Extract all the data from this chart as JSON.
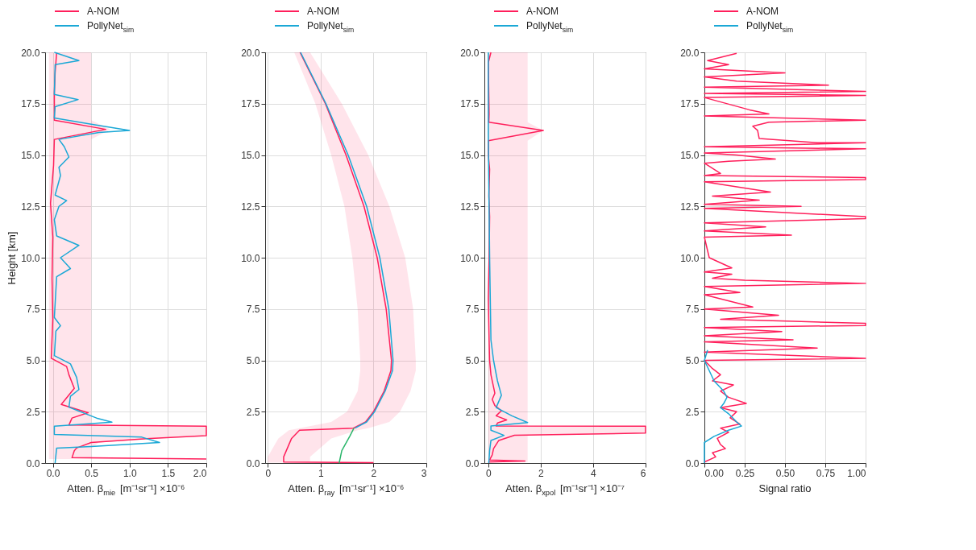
{
  "chart_data": [
    {
      "type": "line",
      "orientation": "horizontal",
      "xlabel": "Atten. β$_{mie}$ [m⁻¹sr⁻¹] ×10⁻⁶",
      "ylabel": "Height [km]",
      "xlim": [
        -0.1,
        2.0
      ],
      "xticks": [
        {
          "value": 0,
          "label": "0.0"
        },
        0.5,
        {
          "value": 1,
          "label": "1.0"
        },
        1.5,
        {
          "value": 2,
          "label": "2.0"
        }
      ],
      "ylim": [
        0,
        20
      ],
      "yticks": [
        {
          "value": 0,
          "label": "0.0"
        },
        2.5,
        {
          "value": 5,
          "label": "5.0"
        },
        7.5,
        {
          "value": 10,
          "label": "10.0"
        },
        12.5,
        {
          "value": 15,
          "label": "15.0"
        },
        17.5,
        {
          "value": 20,
          "label": "20.0"
        }
      ],
      "grid": true,
      "legend": "top left",
      "series": [
        {
          "name": "A-NOM",
          "color": "#ff1f5b",
          "values": [
            0.05,
            0.03,
            0.02,
            0.02,
            0.69,
            0.02,
            0.01,
            -0.03,
            0.0,
            -0.01,
            0.0,
            -0.02,
            0.18,
            0.21,
            0.28,
            0.11,
            0.46,
            0.25,
            0.21,
            2.0,
            2.0,
            1.22,
            0.5,
            0.31,
            0.28,
            0.25,
            2.0
          ],
          "x": [
            20,
            19.0,
            18.0,
            16.7,
            16.25,
            15.76,
            14.5,
            12.65,
            11,
            9,
            7,
            5.1,
            4.7,
            4.3,
            3.64,
            2.85,
            2.45,
            2.19,
            1.85,
            1.79,
            1.33,
            1.19,
            1.0,
            0.73,
            0.6,
            0.26,
            0.2
          ],
          "lower": [
            -0.05,
            -0.05,
            -0.05,
            -0.05,
            -0.05,
            -0.05,
            -0.05,
            -0.05,
            -0.05,
            -0.05,
            -0.05,
            -0.05,
            -0.05,
            -0.05,
            -0.05,
            -0.05,
            -0.05,
            -0.05,
            -0.05,
            -0.05,
            -0.05,
            -0.05,
            -0.05,
            -0.05,
            -0.05,
            -0.05,
            -0.05
          ],
          "upper": [
            0.5,
            0.5,
            0.5,
            0.5,
            0.75,
            0.5,
            0.5,
            0.5,
            0.5,
            0.5,
            0.5,
            0.5,
            0.5,
            0.5,
            0.5,
            0.5,
            0.5,
            0.5,
            0.5,
            2.0,
            2.0,
            1.3,
            0.6,
            0.5,
            0.5,
            0.5,
            2.0
          ]
        },
        {
          "name": "PollyNet$_{sim}$",
          "color": "#1ba8d6",
          "values": [
            0.02,
            0.34,
            0.03,
            0.02,
            0.33,
            0.03,
            0.02,
            0.5,
            1.0,
            0.6,
            0.08,
            0.15,
            0.21,
            0.08,
            0.1,
            0.03,
            0.18,
            0.08,
            0.02,
            0.05,
            0.34,
            0.1,
            0.23,
            0.05,
            0.02,
            0.1,
            0.04,
            0.02,
            0.23,
            0.31,
            0.34,
            0.23,
            0.21,
            0.57,
            0.77,
            0.02,
            0.02,
            1.16,
            1.39,
            0.5,
            0.05,
            0.03
          ],
          "x": [
            20,
            19.6,
            19.4,
            17.95,
            17.7,
            17.35,
            16.8,
            16.5,
            16.2,
            16.1,
            15.76,
            15.4,
            14.9,
            14.4,
            14.0,
            13.05,
            12.78,
            12.5,
            11.85,
            11.06,
            10.6,
            10.0,
            9.47,
            9.07,
            7.09,
            6.69,
            6.42,
            5.23,
            4.83,
            4.17,
            3.58,
            3.25,
            2.72,
            2.19,
            1.99,
            1.79,
            1.39,
            1.26,
            1.0,
            0.8,
            0.73,
            0
          ]
        }
      ]
    },
    {
      "type": "line",
      "orientation": "horizontal",
      "xlabel": "Atten. β$_{ray}$ [m⁻¹sr⁻¹] ×10⁻⁶",
      "xlim": [
        -0.05,
        3
      ],
      "xticks": [
        0,
        1,
        2,
        3
      ],
      "ylim": [
        0,
        20
      ],
      "yticks": [
        {
          "value": 0,
          "label": "0.0"
        },
        2.5,
        {
          "value": 5,
          "label": "5.0"
        },
        7.5,
        {
          "value": 10,
          "label": "10.0"
        },
        12.5,
        {
          "value": 15,
          "label": "15.0"
        },
        17.5,
        {
          "value": 20,
          "label": "20.0"
        }
      ],
      "grid": true,
      "legend": "top left",
      "series": [
        {
          "name": "A-NOM",
          "color": "#ff1f5b",
          "values": [
            0.61,
            1.09,
            1.48,
            1.82,
            2.07,
            2.24,
            2.34,
            2.33,
            2.2,
            2.0,
            1.85,
            1.62,
            0.6,
            0.45,
            0.3,
            0.3,
            2.0
          ],
          "x": [
            20,
            17.5,
            15,
            12.5,
            10,
            7.5,
            5,
            4.5,
            3.5,
            2.5,
            2.0,
            1.7,
            1.6,
            1.2,
            0.3,
            0.05,
            0.02
          ],
          "lower": [
            0.5,
            0.9,
            1.2,
            1.45,
            1.6,
            1.7,
            1.75,
            1.75,
            1.7,
            1.5,
            1.2,
            0.6,
            0.4,
            0.2,
            0.0,
            0.0,
            0.0
          ],
          "upper": [
            0.8,
            1.4,
            1.9,
            2.3,
            2.6,
            2.75,
            2.8,
            2.8,
            2.7,
            2.5,
            2.3,
            1.9,
            1.7,
            1.2,
            0.8,
            0.8,
            2.0
          ]
        },
        {
          "name": "PollyNet$_{sim}$",
          "color": "#1ba8d6",
          "values": [
            0.62,
            1.1,
            1.52,
            1.87,
            2.12,
            2.29,
            2.37,
            2.36,
            2.22,
            2.02,
            1.87,
            1.65
          ],
          "x": [
            20,
            17.5,
            15,
            12.5,
            10,
            7.5,
            5,
            4.5,
            3.5,
            2.5,
            2.0,
            1.7
          ]
        },
        {
          "color": "#2ab56a",
          "values": [
            1.63,
            1.55,
            1.4,
            1.35
          ],
          "x": [
            1.7,
            1.3,
            0.6,
            0
          ]
        }
      ]
    },
    {
      "type": "line",
      "orientation": "horizontal",
      "xlabel": "Atten. β$_{xpol}$ [m⁻¹sr⁻¹] ×10⁻⁷",
      "xlim": [
        -0.15,
        6
      ],
      "xticks": [
        0,
        2,
        4,
        6
      ],
      "ylim": [
        0,
        20
      ],
      "yticks": [
        {
          "value": 0,
          "label": "0.0"
        },
        2.5,
        {
          "value": 5,
          "label": "5.0"
        },
        7.5,
        {
          "value": 10,
          "label": "10.0"
        },
        12.5,
        {
          "value": 15,
          "label": "15.0"
        },
        17.5,
        {
          "value": 20,
          "label": "20.0"
        }
      ],
      "grid": true,
      "legend": "top left",
      "series": [
        {
          "name": "A-NOM",
          "color": "#ff1f5b",
          "values": [
            0.1,
            0.0,
            0.03,
            0.02,
            2.1,
            0.0,
            0.0,
            0.05,
            0.02,
            0.05,
            0.03,
            0.0,
            0.03,
            0.05,
            0.1,
            0.2,
            0.25,
            0.15,
            0.25,
            0.5,
            0.3,
            0.7,
            0.35,
            0.3,
            6.0,
            6.0,
            1.0,
            0.4,
            0.2,
            0.15,
            0.05,
            1.4,
            0.0
          ],
          "x": [
            20,
            19.5,
            17.0,
            16.6,
            16.2,
            15.7,
            15.0,
            14.3,
            13.0,
            12.0,
            10,
            8,
            6,
            5,
            4.3,
            3.7,
            3.4,
            3.1,
            2.8,
            2.55,
            2.3,
            2.1,
            1.95,
            1.8,
            1.79,
            1.46,
            1.35,
            1.1,
            0.7,
            0.4,
            0.15,
            0.1,
            0.05
          ],
          "lower": [
            0,
            0,
            0,
            0,
            0,
            0,
            0,
            0,
            0,
            0,
            0,
            0,
            0,
            0,
            0,
            0,
            0,
            0,
            0,
            0,
            0,
            0,
            0,
            0,
            0,
            0,
            0,
            0,
            0,
            0,
            0,
            0,
            0
          ],
          "upper": [
            1.5,
            1.5,
            1.5,
            1.5,
            2.1,
            1.5,
            1.5,
            1.5,
            1.5,
            1.5,
            1.5,
            1.5,
            1.5,
            1.5,
            1.5,
            1.5,
            1.5,
            1.5,
            1.5,
            1.5,
            1.5,
            1.5,
            1.5,
            1.5,
            6.0,
            6.0,
            1.5,
            1.5,
            1.5,
            1.5,
            1.5,
            1.5,
            1.5
          ]
        },
        {
          "name": "PollyNet$_{sim}$",
          "color": "#1ba8d6",
          "values": [
            0.0,
            0.0,
            0.05,
            0.1,
            0.2,
            0.35,
            0.5,
            0.3,
            0.9,
            1.5,
            0.1,
            0.1,
            0.6,
            0.1,
            0.05,
            0.02
          ],
          "x": [
            20,
            16,
            10,
            6,
            5,
            4,
            3.3,
            2.7,
            2.3,
            1.97,
            1.8,
            1.6,
            1.35,
            1.1,
            0.6,
            0
          ]
        }
      ]
    },
    {
      "type": "line",
      "orientation": "horizontal",
      "xlabel": "Signal ratio",
      "xlim": [
        0,
        1
      ],
      "xticks": [
        {
          "value": 0,
          "label": "0.00"
        },
        0.25,
        {
          "value": 0.5,
          "label": "0.50"
        },
        0.75,
        {
          "value": 1,
          "label": "1.00"
        }
      ],
      "ylim": [
        0,
        20
      ],
      "yticks": [
        {
          "value": 0,
          "label": "0.0"
        },
        2.5,
        {
          "value": 5,
          "label": "5.0"
        },
        7.5,
        {
          "value": 10,
          "label": "10.0"
        },
        12.5,
        {
          "value": 15,
          "label": "15.0"
        },
        17.5,
        {
          "value": 20,
          "label": "20.0"
        }
      ],
      "grid": true,
      "legend": "top left",
      "series": [
        {
          "name": "A-NOM",
          "color": "#ff1f5b",
          "values": [
            0.2,
            0.02,
            0.15,
            0.0,
            0.5,
            0.0,
            0.2,
            0.77,
            0.0,
            1.0,
            0.0,
            1.0,
            0.0,
            0.28,
            0.4,
            0.0,
            1.0,
            0.4,
            0.3,
            0.33,
            0.34,
            0.7,
            1.0,
            0.0,
            1.0,
            0.0,
            0.2,
            0.44,
            0.15,
            0.0,
            0.1,
            0.0,
            1.0,
            1.0,
            0.0,
            0.41,
            0.05,
            0.34,
            0.0,
            0.6,
            0.0,
            1.0,
            1.0,
            0.0,
            0.38,
            0.0,
            0.54,
            0.0,
            0.03,
            0.17,
            0.0,
            0.17,
            0.05,
            0.25,
            1.0,
            0.0,
            0.22,
            0.0,
            0.3,
            0.0,
            0.46,
            0.1,
            0.56,
            1.0,
            1.0,
            0.0,
            0.48,
            0.0,
            0.55,
            0.0,
            0.7,
            0.0,
            1.0,
            0.0,
            0.05,
            0.1,
            0.05,
            0.18,
            0.1,
            0.15,
            0.26,
            0.1,
            0.2,
            0.16,
            0.22,
            0.1,
            0.15,
            0.08,
            0.1,
            0.13,
            0.05,
            0.07,
            0.0
          ],
          "x": [
            19.95,
            19.6,
            19.4,
            19.2,
            19.0,
            18.8,
            18.6,
            18.4,
            18.3,
            18.1,
            18.0,
            17.9,
            17.8,
            17.2,
            17.0,
            16.9,
            16.7,
            16.6,
            16.4,
            16.2,
            15.8,
            15.6,
            15.6,
            15.4,
            15.3,
            15.1,
            15.0,
            14.8,
            14.7,
            14.6,
            14.1,
            14.0,
            13.9,
            13.8,
            13.7,
            13.2,
            13.0,
            12.8,
            12.6,
            12.5,
            12.4,
            12.0,
            11.9,
            11.7,
            11.5,
            11.3,
            11.1,
            11.0,
            10.0,
            9.5,
            9.3,
            9.2,
            9.0,
            8.9,
            8.75,
            8.6,
            8.3,
            8.2,
            7.6,
            7.5,
            7.2,
            7.0,
            6.9,
            6.8,
            6.7,
            6.6,
            6.4,
            6.2,
            6.0,
            5.9,
            5.6,
            5.4,
            5.1,
            5.0,
            4.6,
            4.3,
            4.0,
            3.8,
            3.5,
            3.2,
            2.9,
            2.7,
            2.5,
            2.2,
            1.9,
            1.7,
            1.5,
            1.2,
            0.9,
            0.7,
            0.5,
            0.3,
            0.05
          ]
        },
        {
          "name": "PollyNet$_{sim}$",
          "color": "#1ba8d6",
          "values": [
            0.02,
            0.0,
            0.03,
            0.06,
            0.12,
            0.14,
            0.12,
            0.1,
            0.15,
            0.2,
            0.23,
            0.15,
            0.06,
            0.0,
            0.0
          ],
          "x": [
            5.5,
            5.0,
            4.5,
            4.0,
            3.5,
            3.2,
            2.9,
            2.7,
            2.4,
            2.0,
            1.8,
            1.6,
            1.3,
            1.0,
            0.0
          ]
        }
      ]
    }
  ]
}
